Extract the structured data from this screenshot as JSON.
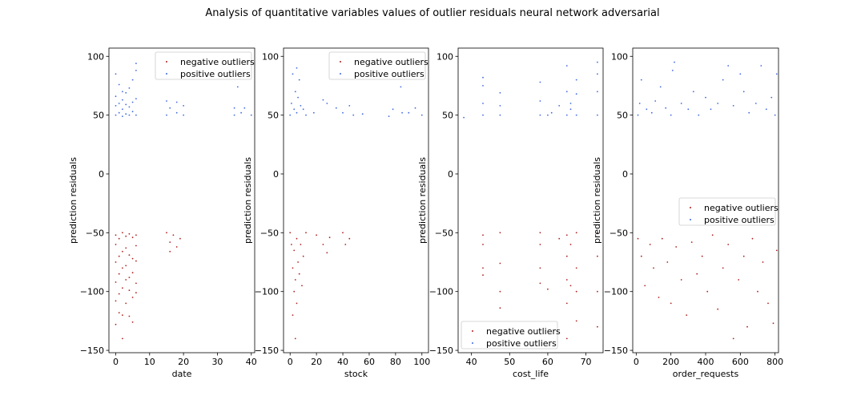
{
  "figure": {
    "title": "Analysis of quantitative variables values of outlier residuals neural network adversarial"
  },
  "colors": {
    "negative": "#b22222",
    "positive": "#4169e1",
    "axes": "#000000",
    "legend_border": "#cccccc"
  },
  "chart_data": [
    {
      "type": "scatter",
      "xlabel": "date",
      "ylabel": "prediction residuals",
      "xlim": [
        -2,
        41
      ],
      "ylim": [
        -152,
        107
      ],
      "xticks": [
        0,
        10,
        20,
        30,
        40
      ],
      "yticks": [
        -150,
        -100,
        -50,
        0,
        50,
        100
      ],
      "legend_loc": "upper right",
      "series": [
        {
          "name": "negative outliers",
          "color": "#b22222",
          "points": [
            [
              0,
              -52
            ],
            [
              0,
              -60
            ],
            [
              0,
              -75
            ],
            [
              0,
              -92
            ],
            [
              0,
              -108
            ],
            [
              0,
              -128
            ],
            [
              1,
              -55
            ],
            [
              1,
              -70
            ],
            [
              1,
              -85
            ],
            [
              1,
              -102
            ],
            [
              1,
              -118
            ],
            [
              2,
              -50
            ],
            [
              2,
              -66
            ],
            [
              2,
              -80
            ],
            [
              2,
              -97
            ],
            [
              2,
              -120
            ],
            [
              2,
              -140
            ],
            [
              3,
              -53
            ],
            [
              3,
              -63
            ],
            [
              3,
              -78
            ],
            [
              3,
              -90
            ],
            [
              3,
              -110
            ],
            [
              4,
              -51
            ],
            [
              4,
              -69
            ],
            [
              4,
              -88
            ],
            [
              4,
              -99
            ],
            [
              4,
              -121
            ],
            [
              5,
              -54
            ],
            [
              5,
              -72
            ],
            [
              5,
              -84
            ],
            [
              5,
              -105
            ],
            [
              5,
              -126
            ],
            [
              6,
              -52
            ],
            [
              6,
              -61
            ],
            [
              6,
              -74
            ],
            [
              6,
              -93
            ],
            [
              6,
              -101
            ],
            [
              15,
              -50
            ],
            [
              16,
              -58
            ],
            [
              16,
              -66
            ],
            [
              17,
              -52
            ],
            [
              18,
              -62
            ],
            [
              19,
              -55
            ]
          ]
        },
        {
          "name": "positive outliers",
          "color": "#4169e1",
          "points": [
            [
              0,
              50
            ],
            [
              0,
              58
            ],
            [
              0,
              66
            ],
            [
              0,
              85
            ],
            [
              1,
              52
            ],
            [
              1,
              60
            ],
            [
              1,
              76
            ],
            [
              2,
              49
            ],
            [
              2,
              55
            ],
            [
              2,
              63
            ],
            [
              2,
              70
            ],
            [
              3,
              51
            ],
            [
              3,
              59
            ],
            [
              3,
              69
            ],
            [
              4,
              50
            ],
            [
              4,
              57
            ],
            [
              4,
              73
            ],
            [
              5,
              53
            ],
            [
              5,
              61
            ],
            [
              5,
              80
            ],
            [
              6,
              50
            ],
            [
              6,
              64
            ],
            [
              6,
              88
            ],
            [
              6,
              94
            ],
            [
              15,
              50
            ],
            [
              15,
              62
            ],
            [
              16,
              56
            ],
            [
              18,
              52
            ],
            [
              18,
              61
            ],
            [
              20,
              50
            ],
            [
              20,
              58
            ],
            [
              35,
              50
            ],
            [
              35,
              56
            ],
            [
              36,
              74
            ],
            [
              37,
              52
            ],
            [
              38,
              56
            ],
            [
              40,
              50
            ]
          ]
        }
      ]
    },
    {
      "type": "scatter",
      "xlabel": "stock",
      "ylabel": "prediction residuals",
      "xlim": [
        -5,
        105
      ],
      "ylim": [
        -152,
        107
      ],
      "xticks": [
        0,
        20,
        40,
        60,
        80,
        100
      ],
      "yticks": [
        -150,
        -100,
        -50,
        0,
        50,
        100
      ],
      "legend_loc": "upper right",
      "series": [
        {
          "name": "negative outliers",
          "color": "#b22222",
          "points": [
            [
              0,
              -50
            ],
            [
              1,
              -60
            ],
            [
              2,
              -80
            ],
            [
              2,
              -120
            ],
            [
              3,
              -65
            ],
            [
              3,
              -100
            ],
            [
              4,
              -90
            ],
            [
              4,
              -140
            ],
            [
              5,
              -55
            ],
            [
              5,
              -110
            ],
            [
              6,
              -75
            ],
            [
              7,
              -85
            ],
            [
              8,
              -60
            ],
            [
              9,
              -95
            ],
            [
              10,
              -70
            ],
            [
              12,
              -50
            ],
            [
              20,
              -52
            ],
            [
              25,
              -60
            ],
            [
              28,
              -67
            ],
            [
              30,
              -54
            ],
            [
              40,
              -50
            ],
            [
              42,
              -60
            ],
            [
              45,
              -55
            ]
          ]
        },
        {
          "name": "positive outliers",
          "color": "#4169e1",
          "points": [
            [
              0,
              50
            ],
            [
              1,
              60
            ],
            [
              2,
              85
            ],
            [
              3,
              55
            ],
            [
              4,
              70
            ],
            [
              5,
              90
            ],
            [
              5,
              52
            ],
            [
              6,
              65
            ],
            [
              7,
              80
            ],
            [
              8,
              58
            ],
            [
              10,
              55
            ],
            [
              12,
              50
            ],
            [
              18,
              52
            ],
            [
              25,
              63
            ],
            [
              28,
              60
            ],
            [
              35,
              56
            ],
            [
              40,
              52
            ],
            [
              45,
              58
            ],
            [
              48,
              50
            ],
            [
              55,
              51
            ],
            [
              75,
              49
            ],
            [
              78,
              55
            ],
            [
              85,
              52
            ],
            [
              90,
              52
            ],
            [
              95,
              56
            ],
            [
              100,
              50
            ],
            [
              84,
              74
            ]
          ]
        }
      ]
    },
    {
      "type": "scatter",
      "xlabel": "cost_life",
      "ylabel": "prediction residuals",
      "xlim": [
        36.5,
        74.5
      ],
      "ylim": [
        -152,
        107
      ],
      "xticks": [
        40,
        50,
        60,
        70
      ],
      "yticks": [
        -150,
        -100,
        -50,
        0,
        50,
        100
      ],
      "legend_loc": "lower left",
      "series": [
        {
          "name": "negative outliers",
          "color": "#b22222",
          "points": [
            [
              43,
              -52
            ],
            [
              43,
              -60
            ],
            [
              43,
              -80
            ],
            [
              43,
              -86
            ],
            [
              47.5,
              -50
            ],
            [
              47.5,
              -76
            ],
            [
              47.5,
              -100
            ],
            [
              47.5,
              -114
            ],
            [
              58,
              -50
            ],
            [
              58,
              -60
            ],
            [
              58,
              -80
            ],
            [
              58,
              -93
            ],
            [
              60,
              -98
            ],
            [
              63,
              -55
            ],
            [
              65,
              -52
            ],
            [
              65,
              -70
            ],
            [
              65,
              -90
            ],
            [
              65,
              -110
            ],
            [
              65,
              -140
            ],
            [
              66,
              -60
            ],
            [
              66,
              -95
            ],
            [
              67.5,
              -50
            ],
            [
              67.5,
              -80
            ],
            [
              67.5,
              -100
            ],
            [
              67.5,
              -125
            ],
            [
              73,
              -50
            ],
            [
              73,
              -70
            ],
            [
              73,
              -100
            ],
            [
              73,
              -130
            ]
          ]
        },
        {
          "name": "positive outliers",
          "color": "#4169e1",
          "points": [
            [
              38,
              48
            ],
            [
              43,
              50
            ],
            [
              43,
              60
            ],
            [
              43,
              75
            ],
            [
              43,
              82
            ],
            [
              47.5,
              50
            ],
            [
              47.5,
              58
            ],
            [
              47.5,
              69
            ],
            [
              58,
              50
            ],
            [
              58,
              62
            ],
            [
              58,
              78
            ],
            [
              60,
              50
            ],
            [
              61,
              52
            ],
            [
              63,
              58
            ],
            [
              65,
              50
            ],
            [
              65,
              70
            ],
            [
              65,
              92
            ],
            [
              66,
              55
            ],
            [
              66,
              60
            ],
            [
              67.5,
              50
            ],
            [
              67.5,
              68
            ],
            [
              67.5,
              80
            ],
            [
              73,
              50
            ],
            [
              73,
              70
            ],
            [
              73,
              85
            ],
            [
              73,
              95
            ]
          ]
        }
      ]
    },
    {
      "type": "scatter",
      "xlabel": "order_requests",
      "ylabel": "prediction residuals",
      "xlim": [
        -20,
        820
      ],
      "ylim": [
        -152,
        107
      ],
      "xticks": [
        0,
        200,
        400,
        600,
        800
      ],
      "yticks": [
        -150,
        -100,
        -50,
        0,
        50,
        100
      ],
      "legend_loc": "center right",
      "series": [
        {
          "name": "negative outliers",
          "color": "#b22222",
          "points": [
            [
              10,
              -55
            ],
            [
              30,
              -70
            ],
            [
              50,
              -95
            ],
            [
              80,
              -60
            ],
            [
              100,
              -80
            ],
            [
              130,
              -105
            ],
            [
              150,
              -55
            ],
            [
              180,
              -75
            ],
            [
              200,
              -110
            ],
            [
              230,
              -62
            ],
            [
              260,
              -90
            ],
            [
              290,
              -120
            ],
            [
              320,
              -58
            ],
            [
              350,
              -85
            ],
            [
              380,
              -70
            ],
            [
              410,
              -100
            ],
            [
              440,
              -52
            ],
            [
              470,
              -115
            ],
            [
              500,
              -80
            ],
            [
              530,
              -60
            ],
            [
              560,
              -140
            ],
            [
              590,
              -90
            ],
            [
              620,
              -70
            ],
            [
              640,
              -130
            ],
            [
              670,
              -55
            ],
            [
              700,
              -100
            ],
            [
              730,
              -75
            ],
            [
              760,
              -110
            ],
            [
              790,
              -127
            ],
            [
              810,
              -65
            ]
          ]
        },
        {
          "name": "positive outliers",
          "color": "#4169e1",
          "points": [
            [
              10,
              50
            ],
            [
              20,
              60
            ],
            [
              30,
              80
            ],
            [
              60,
              55
            ],
            [
              90,
              52
            ],
            [
              110,
              62
            ],
            [
              140,
              74
            ],
            [
              170,
              56
            ],
            [
              200,
              50
            ],
            [
              210,
              88
            ],
            [
              220,
              95
            ],
            [
              260,
              60
            ],
            [
              300,
              55
            ],
            [
              330,
              70
            ],
            [
              360,
              50
            ],
            [
              400,
              65
            ],
            [
              430,
              55
            ],
            [
              470,
              60
            ],
            [
              500,
              80
            ],
            [
              530,
              92
            ],
            [
              560,
              58
            ],
            [
              600,
              85
            ],
            [
              620,
              70
            ],
            [
              650,
              52
            ],
            [
              690,
              60
            ],
            [
              720,
              92
            ],
            [
              750,
              55
            ],
            [
              780,
              65
            ],
            [
              800,
              50
            ],
            [
              810,
              85
            ]
          ]
        }
      ]
    }
  ]
}
